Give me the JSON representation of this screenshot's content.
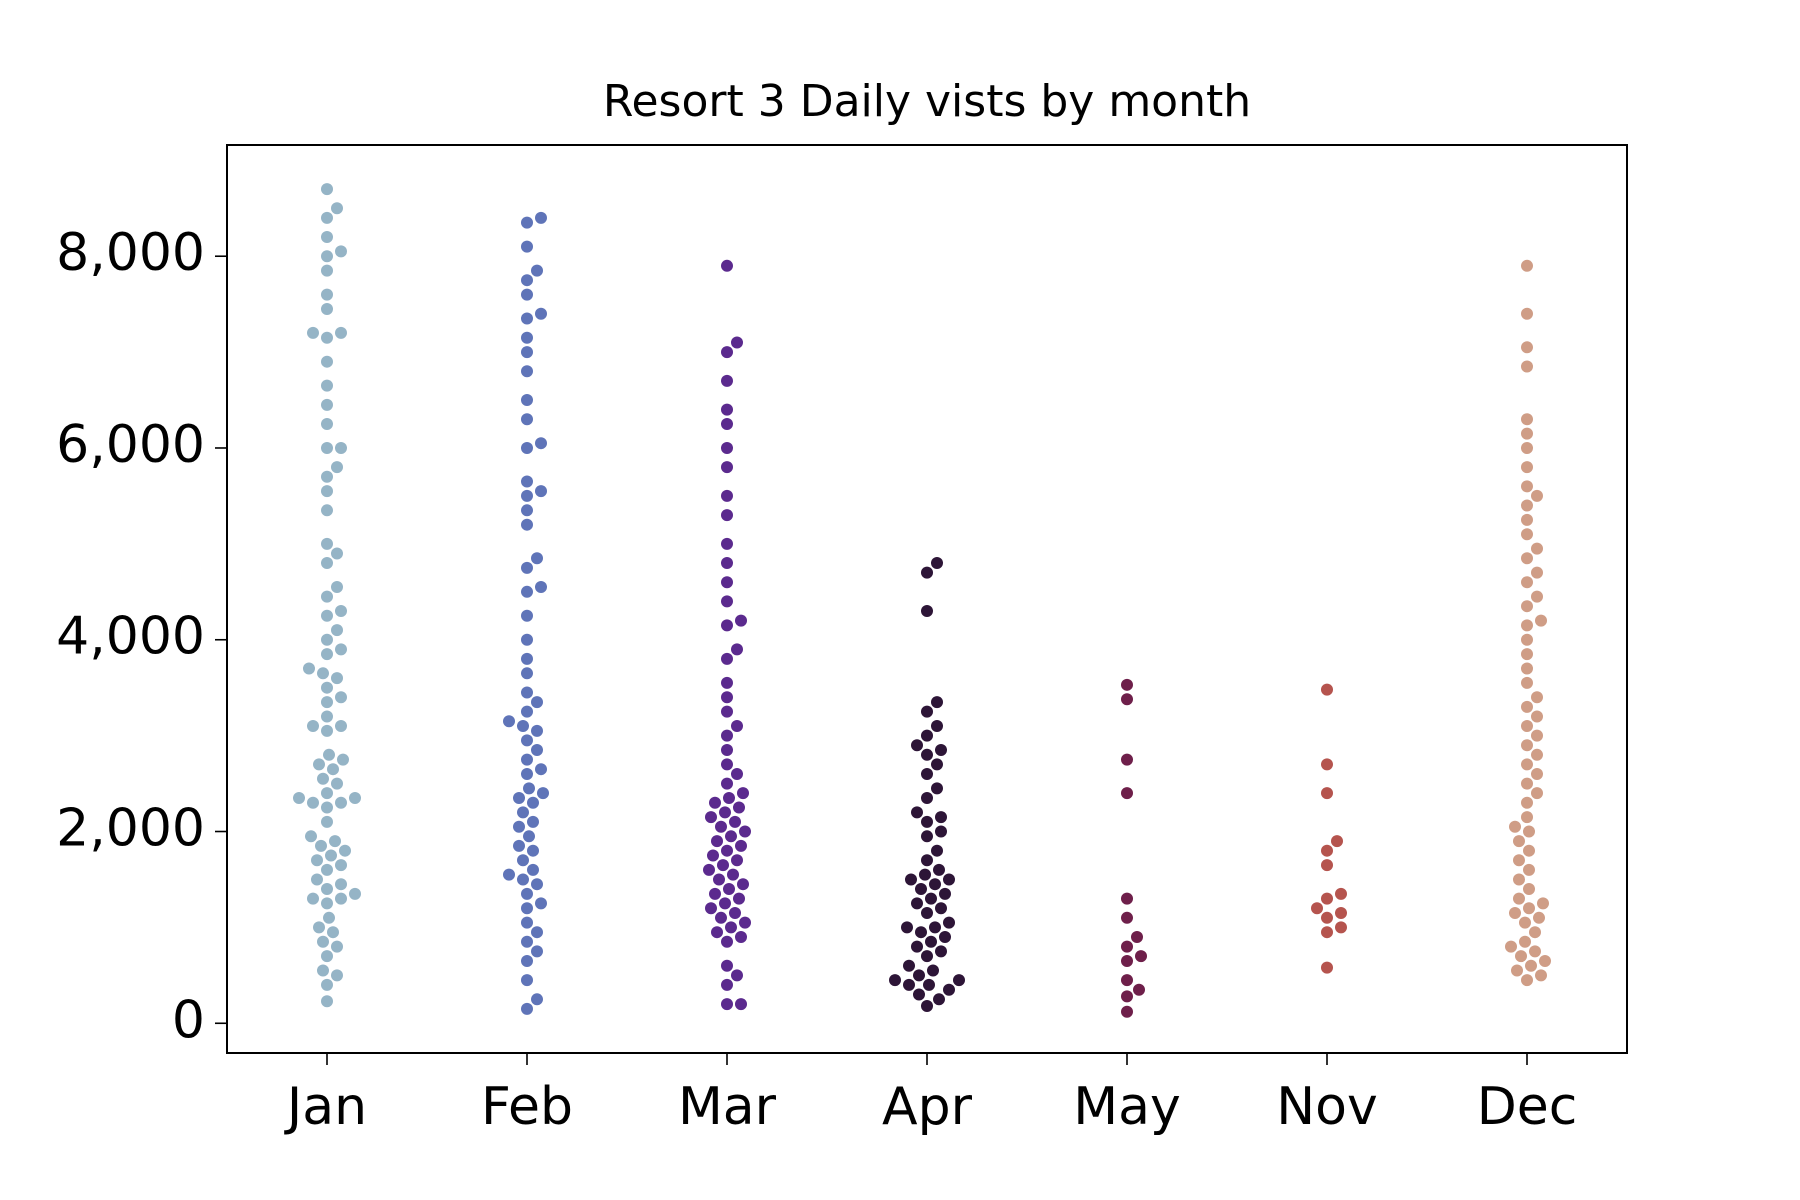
{
  "chart_data": {
    "type": "swarm",
    "title": "Resort 3 Daily vists by month",
    "categories": [
      "Jan",
      "Feb",
      "Mar",
      "Apr",
      "May",
      "Nov",
      "Dec"
    ],
    "colors": [
      "#95b4c6",
      "#5f74b8",
      "#5b2a8e",
      "#2d1537",
      "#6e1f4a",
      "#b5544e",
      "#cf9d86"
    ],
    "values": [
      [
        230,
        400,
        500,
        550,
        700,
        800,
        850,
        950,
        1000,
        1100,
        1250,
        1300,
        1300,
        1350,
        1400,
        1450,
        1500,
        1600,
        1650,
        1700,
        1750,
        1800,
        1850,
        1900,
        1950,
        2100,
        2250,
        2300,
        2300,
        2350,
        2350,
        2400,
        2500,
        2550,
        2650,
        2700,
        2750,
        2800,
        3050,
        3100,
        3100,
        3200,
        3350,
        3400,
        3500,
        3600,
        3650,
        3700,
        3850,
        3900,
        4000,
        4100,
        4250,
        4300,
        4450,
        4550,
        4800,
        4900,
        5000,
        5350,
        5550,
        5700,
        5800,
        6000,
        6000,
        6250,
        6450,
        6650,
        6900,
        7150,
        7200,
        7200,
        7450,
        7600,
        7850,
        8000,
        8050,
        8200,
        8400,
        8500,
        8700
      ],
      [
        150,
        250,
        450,
        650,
        750,
        850,
        950,
        1050,
        1200,
        1250,
        1350,
        1450,
        1500,
        1550,
        1600,
        1700,
        1800,
        1850,
        1950,
        2050,
        2100,
        2200,
        2300,
        2350,
        2400,
        2450,
        2600,
        2650,
        2750,
        2850,
        2950,
        3050,
        3100,
        3150,
        3250,
        3350,
        3450,
        3650,
        3800,
        4000,
        4250,
        4500,
        4550,
        4750,
        4850,
        5200,
        5350,
        5500,
        5550,
        5650,
        6000,
        6050,
        6300,
        6500,
        6800,
        7000,
        7150,
        7350,
        7400,
        7600,
        7750,
        7850,
        8100,
        8350,
        8400
      ],
      [
        200,
        200,
        400,
        500,
        600,
        850,
        900,
        950,
        1000,
        1050,
        1100,
        1150,
        1200,
        1250,
        1300,
        1350,
        1400,
        1450,
        1500,
        1550,
        1600,
        1650,
        1700,
        1750,
        1800,
        1850,
        1900,
        1950,
        2000,
        2050,
        2100,
        2150,
        2200,
        2250,
        2300,
        2350,
        2400,
        2500,
        2600,
        2700,
        2850,
        3000,
        3100,
        3250,
        3400,
        3550,
        3800,
        3900,
        4150,
        4200,
        4400,
        4600,
        4800,
        5000,
        5300,
        5500,
        5800,
        6000,
        6250,
        6400,
        6700,
        7000,
        7100,
        7900
      ],
      [
        180,
        250,
        300,
        350,
        400,
        400,
        450,
        450,
        500,
        550,
        600,
        700,
        750,
        800,
        850,
        900,
        950,
        1000,
        1000,
        1050,
        1150,
        1200,
        1250,
        1300,
        1350,
        1400,
        1450,
        1500,
        1500,
        1550,
        1600,
        1700,
        1800,
        1950,
        2000,
        2100,
        2150,
        2200,
        2350,
        2450,
        2600,
        2700,
        2800,
        2850,
        2900,
        3000,
        3100,
        3250,
        3350,
        4300,
        4700,
        4800
      ],
      [
        120,
        280,
        350,
        450,
        650,
        700,
        800,
        900,
        1100,
        1300,
        2400,
        2750,
        3380,
        3530
      ],
      [
        580,
        950,
        1000,
        1100,
        1150,
        1200,
        1300,
        1350,
        1650,
        1800,
        1900,
        2400,
        2700,
        3480
      ],
      [
        450,
        500,
        550,
        600,
        650,
        700,
        750,
        800,
        850,
        950,
        1050,
        1100,
        1150,
        1200,
        1250,
        1300,
        1400,
        1500,
        1600,
        1700,
        1800,
        1900,
        2000,
        2050,
        2150,
        2300,
        2400,
        2500,
        2600,
        2700,
        2800,
        2900,
        3000,
        3100,
        3200,
        3300,
        3400,
        3550,
        3700,
        3850,
        4000,
        4150,
        4200,
        4350,
        4450,
        4600,
        4700,
        4850,
        4950,
        5100,
        5250,
        5400,
        5500,
        5600,
        5800,
        6000,
        6150,
        6300,
        6850,
        7050,
        7400,
        7900
      ]
    ],
    "ylim": [
      -310,
      9160
    ],
    "yticks": [
      0,
      {
        "value": 2000,
        "label": "2,000"
      },
      {
        "value": 4000,
        "label": "4,000"
      },
      {
        "value": 6000,
        "label": "6,000"
      },
      {
        "value": 8000,
        "label": "8,000"
      }
    ]
  }
}
